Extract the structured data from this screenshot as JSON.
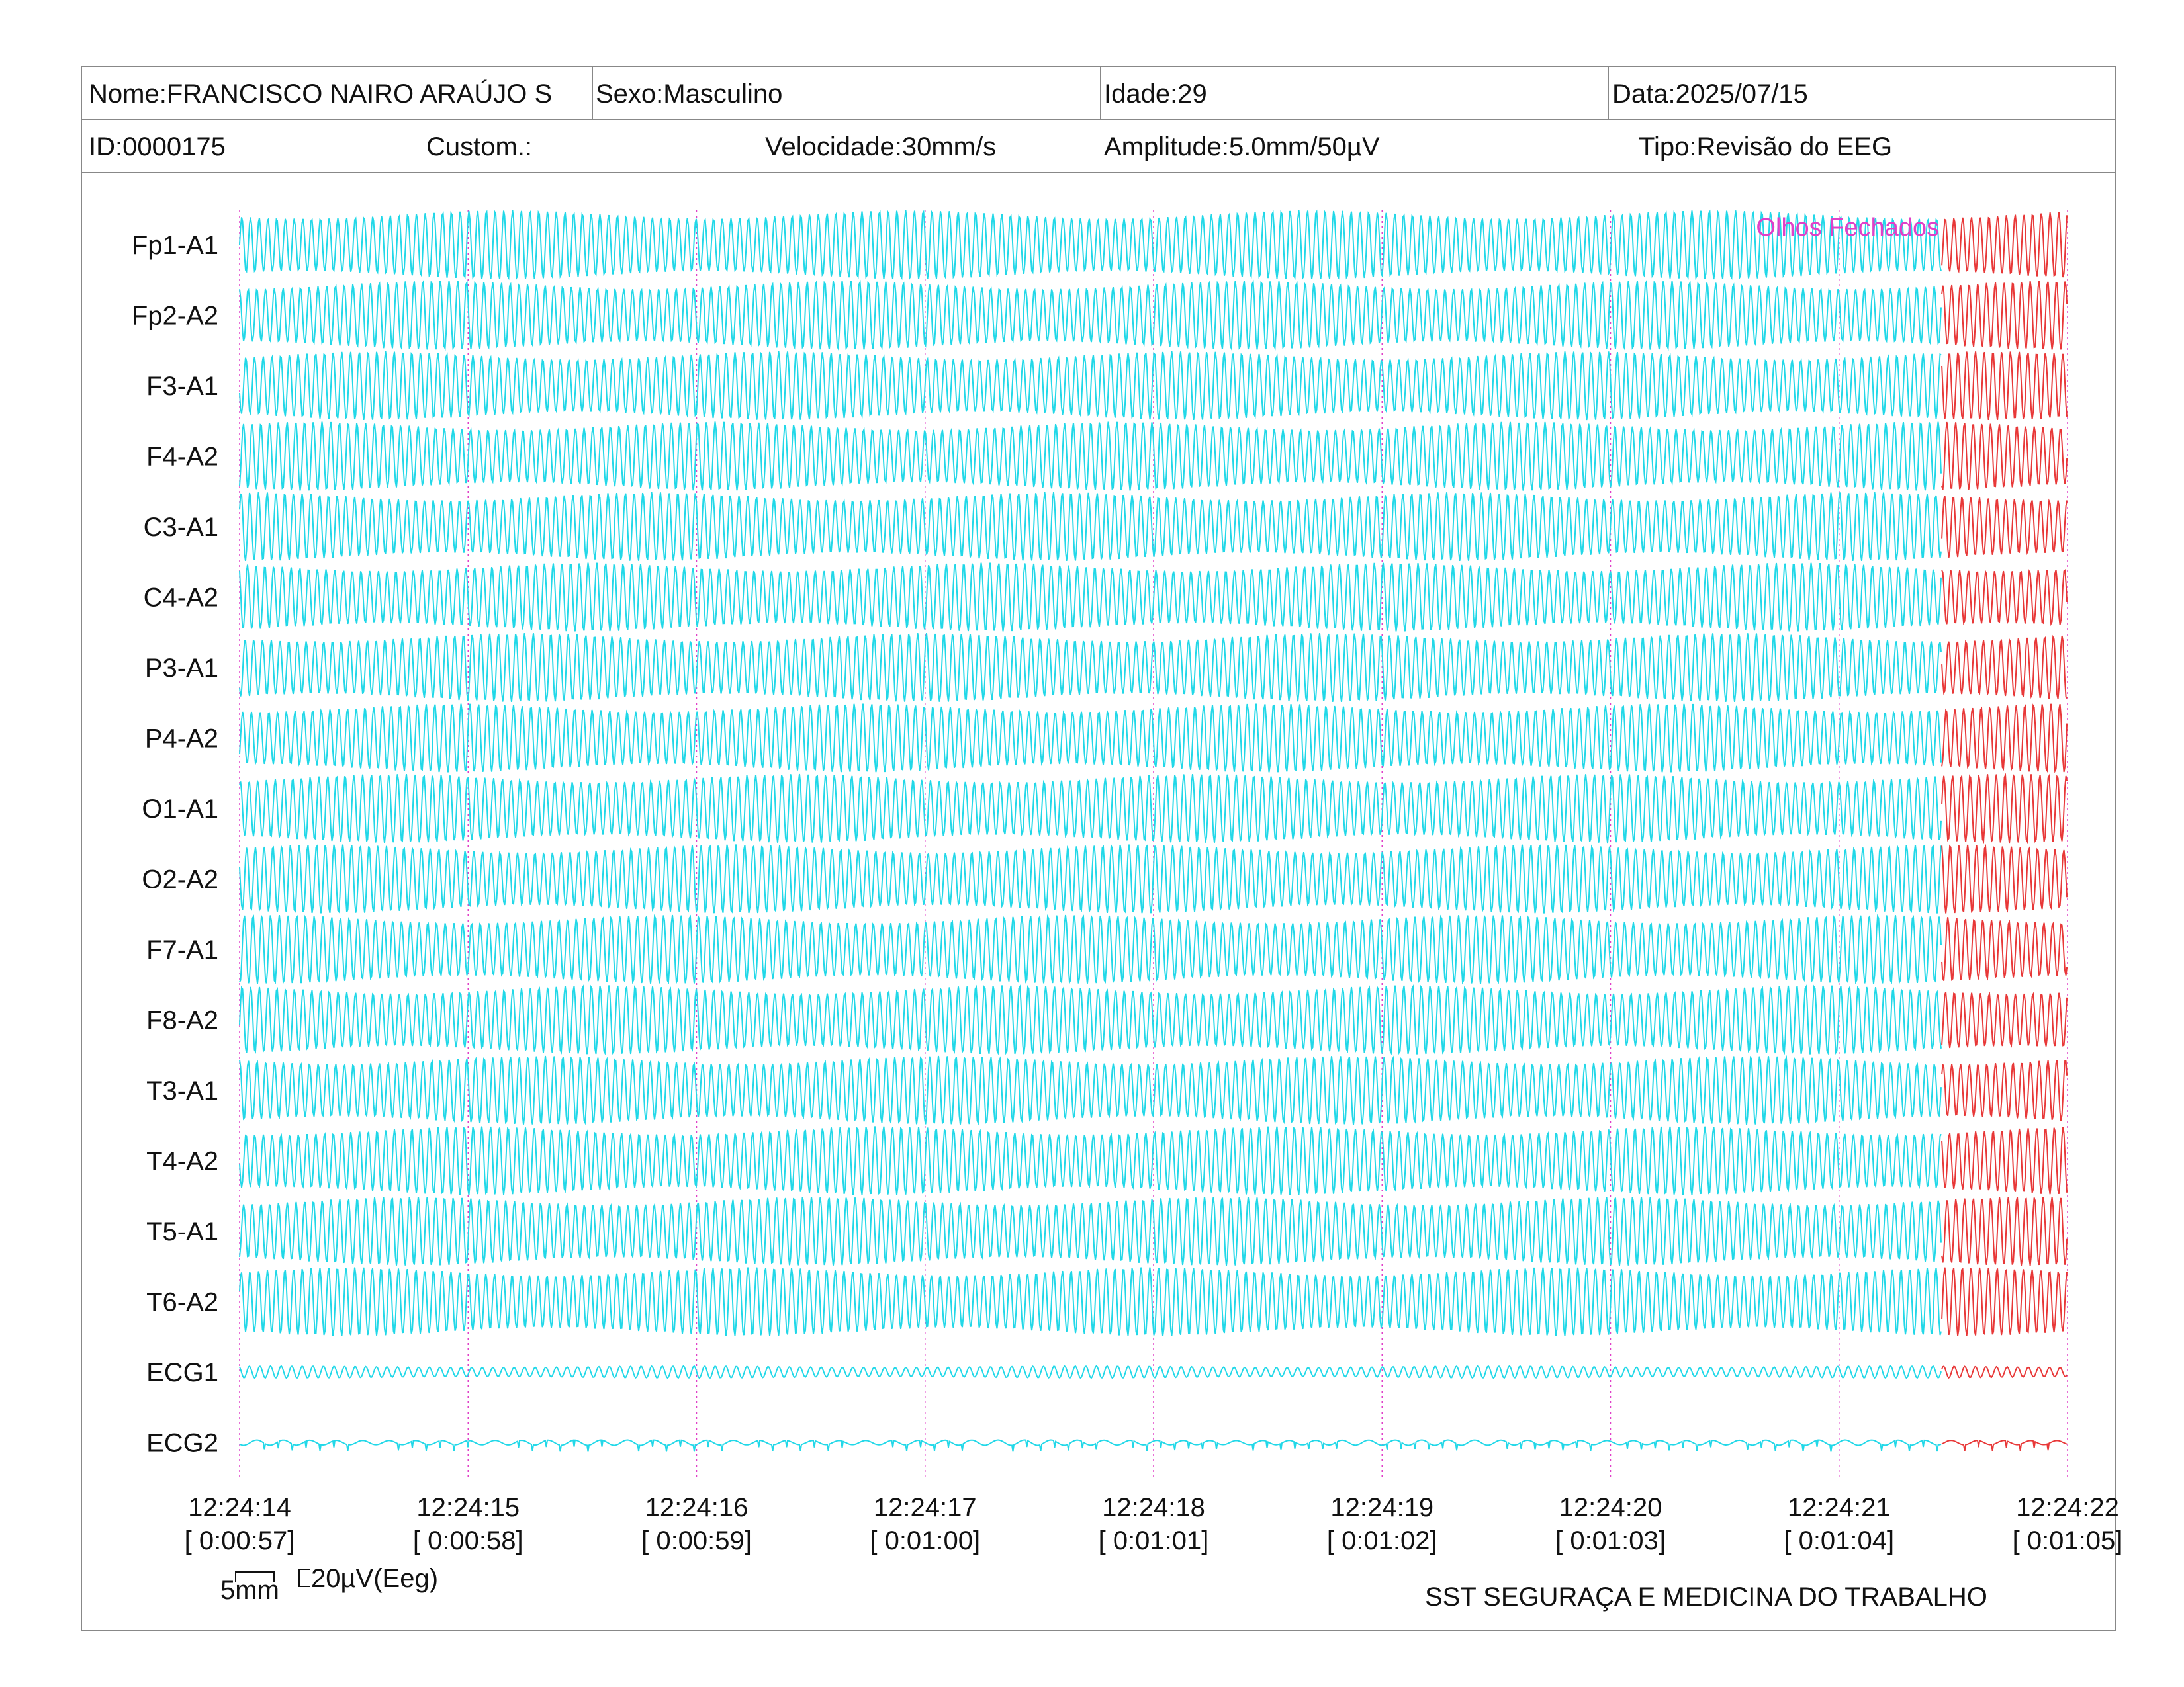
{
  "header": {
    "row1": [
      {
        "label": "Nome:FRANCISCO NAIRO ARAÚJO S"
      },
      {
        "label": "Sexo:Masculino"
      },
      {
        "label": "Idade:29"
      },
      {
        "label": "Data:2025/07/15"
      }
    ],
    "row2": [
      {
        "label": "ID:0000175"
      },
      {
        "label": "Custom.:"
      },
      {
        "label": "Velocidade:30mm/s"
      },
      {
        "label": "Amplitude:5.0mm/50µV"
      },
      {
        "label": "Tipo:Revisão do EEG"
      }
    ]
  },
  "chart_data": {
    "type": "line",
    "channels": [
      "Fp1-A1",
      "Fp2-A2",
      "F3-A1",
      "F4-A2",
      "C3-A1",
      "C4-A2",
      "P3-A1",
      "P4-A2",
      "O1-A1",
      "O2-A2",
      "F7-A1",
      "F8-A2",
      "T3-A1",
      "T4-A2",
      "T5-A1",
      "T6-A2",
      "ECG1",
      "ECG2"
    ],
    "time_ticks": [
      {
        "time": "12:24:14",
        "elapsed": "[ 0:00:57]"
      },
      {
        "time": "12:24:15",
        "elapsed": "[ 0:00:58]"
      },
      {
        "time": "12:24:16",
        "elapsed": "[ 0:00:59]"
      },
      {
        "time": "12:24:17",
        "elapsed": "[ 0:01:00]"
      },
      {
        "time": "12:24:18",
        "elapsed": "[ 0:01:01]"
      },
      {
        "time": "12:24:19",
        "elapsed": "[ 0:01:02]"
      },
      {
        "time": "12:24:20",
        "elapsed": "[ 0:01:03]"
      },
      {
        "time": "12:24:21",
        "elapsed": "[ 0:01:04]"
      },
      {
        "time": "12:24:22",
        "elapsed": "[ 0:01:05]"
      }
    ],
    "x_range_seconds": [
      0,
      8
    ],
    "annotation": {
      "text": "Olhos Fechados",
      "at_seconds": 7.45
    },
    "highlight_from_seconds": 7.45,
    "colors": {
      "trace": "#22d8e8",
      "highlight_trace": "#e83838",
      "marker": "#e040c8",
      "annotation": "#e040c8"
    }
  },
  "scale": {
    "time_label": "5mm",
    "amp_label": "20µV(Eeg)"
  },
  "footer": {
    "company": "SST SEGURAÇA E MEDICINA DO TRABALHO"
  }
}
